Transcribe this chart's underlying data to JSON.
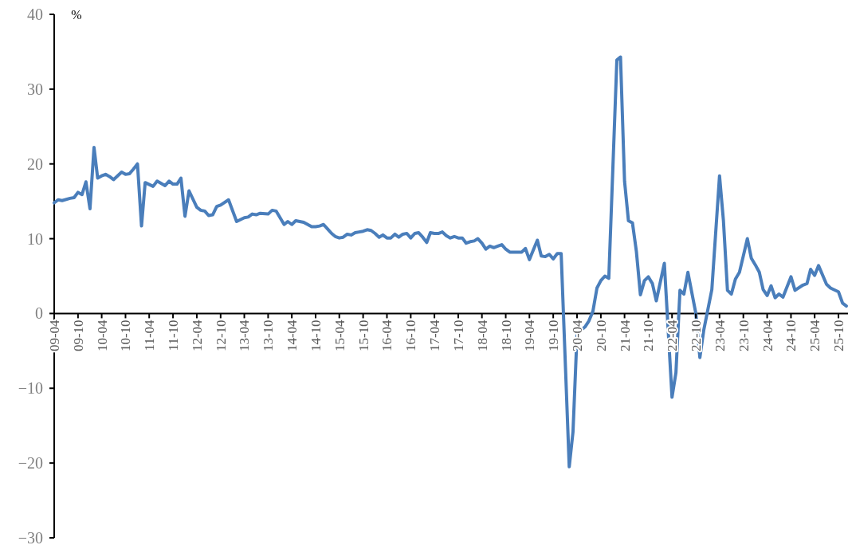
{
  "chart_data": {
    "type": "line",
    "ylabel": "%",
    "xlim": [
      "2009-04",
      "2025-12"
    ],
    "xticks": [
      {
        "value": "2009-04",
        "label": "09-04"
      },
      {
        "value": "2009-10",
        "label": "09-10"
      },
      {
        "value": "2010-04",
        "label": "10-04"
      },
      {
        "value": "2010-10",
        "label": "10-10"
      },
      {
        "value": "2011-04",
        "label": "11-04"
      },
      {
        "value": "2011-10",
        "label": "11-10"
      },
      {
        "value": "2012-04",
        "label": "12-04"
      },
      {
        "value": "2012-10",
        "label": "12-10"
      },
      {
        "value": "2013-04",
        "label": "13-04"
      },
      {
        "value": "2013-10",
        "label": "13-10"
      },
      {
        "value": "2014-04",
        "label": "14-04"
      },
      {
        "value": "2014-10",
        "label": "14-10"
      },
      {
        "value": "2015-04",
        "label": "15-04"
      },
      {
        "value": "2015-10",
        "label": "15-10"
      },
      {
        "value": "2016-04",
        "label": "16-04"
      },
      {
        "value": "2016-10",
        "label": "16-10"
      },
      {
        "value": "2017-04",
        "label": "17-04"
      },
      {
        "value": "2017-10",
        "label": "17-10"
      },
      {
        "value": "2018-04",
        "label": "18-04"
      },
      {
        "value": "2018-10",
        "label": "18-10"
      },
      {
        "value": "2019-04",
        "label": "19-04"
      },
      {
        "value": "2019-10",
        "label": "19-10"
      },
      {
        "value": "2020-04",
        "label": "20-04"
      },
      {
        "value": "2020-10",
        "label": "20-10"
      },
      {
        "value": "2021-04",
        "label": "21-04"
      },
      {
        "value": "2021-10",
        "label": "21-10"
      },
      {
        "value": "2022-04",
        "label": "22-04"
      },
      {
        "value": "2022-10",
        "label": "22-10"
      },
      {
        "value": "2023-04",
        "label": "23-04"
      },
      {
        "value": "2023-10",
        "label": "23-10"
      },
      {
        "value": "2024-04",
        "label": "24-04"
      },
      {
        "value": "2024-10",
        "label": "24-10"
      },
      {
        "value": "2025-04",
        "label": "25-04"
      },
      {
        "value": "2025-10",
        "label": "25-10"
      }
    ],
    "ylim": [
      -30,
      40
    ],
    "yticks": [
      -30,
      -20,
      -10,
      0,
      10,
      20,
      30,
      40
    ],
    "grid": false,
    "marker": "none",
    "series": [
      {
        "color": "#4a7ebb",
        "x": [
          "2009-04",
          "2009-05",
          "2009-06",
          "2009-08",
          "2009-09",
          "2009-10",
          "2009-11",
          "2009-12",
          "2010-01",
          "2010-02",
          "2010-03",
          "2010-04",
          "2010-05",
          "2010-06",
          "2010-07",
          "2010-08",
          "2010-09",
          "2010-10",
          "2010-11",
          "2010-12",
          "2011-01",
          "2011-02",
          "2011-03",
          "2011-05",
          "2011-06",
          "2011-08",
          "2011-09",
          "2011-10",
          "2011-11",
          "2011-12",
          "2012-01",
          "2012-02",
          "2012-04",
          "2012-05",
          "2012-06",
          "2012-07",
          "2012-08",
          "2012-09",
          "2012-10",
          "2012-12",
          "2013-02",
          "2013-04",
          "2013-05",
          "2013-06",
          "2013-07",
          "2013-08",
          "2013-10",
          "2013-11",
          "2013-12",
          "2014-02",
          "2014-03",
          "2014-04",
          "2014-05",
          "2014-06",
          "2014-07",
          "2014-08",
          "2014-09",
          "2014-10",
          "2014-11",
          "2014-12",
          "2015-01",
          "2015-02",
          "2015-03",
          "2015-04",
          "2015-05",
          "2015-06",
          "2015-07",
          "2015-08",
          "2015-09",
          "2015-10",
          "2015-11",
          "2015-12",
          "2016-01",
          "2016-02",
          "2016-03",
          "2016-04",
          "2016-05",
          "2016-06",
          "2016-07",
          "2016-08",
          "2016-09",
          "2016-10",
          "2016-11",
          "2016-12",
          "2017-01",
          "2017-02",
          "2017-03",
          "2017-04",
          "2017-05",
          "2017-06",
          "2017-07",
          "2017-08",
          "2017-09",
          "2017-10",
          "2017-11",
          "2017-12",
          "2018-01",
          "2018-02",
          "2018-03",
          "2018-04",
          "2018-05",
          "2018-06",
          "2018-07",
          "2018-08",
          "2018-09",
          "2018-10",
          "2018-11",
          "2018-12",
          "2019-01",
          "2019-02",
          "2019-03",
          "2019-04",
          "2019-05",
          "2019-06",
          "2019-07",
          "2019-08",
          "2019-09",
          "2019-10",
          "2019-11",
          "2019-12",
          "2020-02",
          "2020-03",
          "2020-04",
          "2020-06",
          "2020-07",
          "2020-08",
          "2020-09",
          "2020-10",
          "2020-11",
          "2020-12",
          "2021-02",
          "2021-03",
          "2021-04",
          "2021-05",
          "2021-06",
          "2021-07",
          "2021-08",
          "2021-09",
          "2021-10",
          "2021-11",
          "2021-12",
          "2022-02",
          "2022-04",
          "2022-05",
          "2022-06",
          "2022-07",
          "2022-08",
          "2022-10",
          "2022-11",
          "2022-12",
          "2023-02",
          "2023-04",
          "2023-05",
          "2023-06",
          "2023-07",
          "2023-08",
          "2023-09",
          "2023-10",
          "2023-11",
          "2023-12",
          "2024-01",
          "2024-02",
          "2024-03",
          "2024-04",
          "2024-05",
          "2024-06",
          "2024-07",
          "2024-08",
          "2024-10",
          "2024-11",
          "2025-01",
          "2025-02",
          "2025-03",
          "2025-04",
          "2025-05",
          "2025-07",
          "2025-08",
          "2025-10",
          "2025-11",
          "2025-12"
        ],
        "values": [
          14.8,
          15.2,
          15.1,
          15.4,
          15.5,
          16.2,
          15.9,
          17.6,
          14.0,
          22.2,
          18.1,
          18.4,
          18.6,
          18.3,
          17.9,
          18.4,
          18.9,
          18.6,
          18.7,
          19.3,
          20.0,
          11.7,
          17.5,
          17.0,
          17.7,
          17.1,
          17.7,
          17.3,
          17.3,
          18.1,
          13.0,
          16.4,
          14.2,
          13.8,
          13.7,
          13.1,
          13.2,
          14.3,
          14.5,
          15.2,
          12.3,
          12.8,
          12.9,
          13.3,
          13.2,
          13.4,
          13.3,
          13.8,
          13.7,
          11.9,
          12.3,
          11.9,
          12.4,
          12.3,
          12.2,
          11.9,
          11.6,
          11.6,
          11.7,
          11.9,
          11.3,
          10.7,
          10.3,
          10.1,
          10.2,
          10.6,
          10.5,
          10.8,
          10.9,
          11.0,
          11.2,
          11.1,
          10.7,
          10.2,
          10.5,
          10.1,
          10.1,
          10.6,
          10.2,
          10.6,
          10.7,
          10.1,
          10.7,
          10.8,
          10.2,
          9.5,
          10.8,
          10.7,
          10.7,
          10.9,
          10.4,
          10.1,
          10.3,
          10.1,
          10.1,
          9.4,
          9.6,
          9.7,
          10.0,
          9.4,
          8.6,
          9.0,
          8.8,
          9.0,
          9.2,
          8.6,
          8.2,
          8.2,
          8.2,
          8.2,
          8.7,
          7.2,
          8.5,
          9.8,
          7.7,
          7.6,
          7.9,
          7.3,
          8.0,
          8.0,
          -20.5,
          -15.8,
          -2.7,
          -1.8,
          -1.0,
          0.3,
          3.4,
          4.4,
          5.0,
          4.7,
          33.9,
          34.3,
          17.7,
          12.4,
          12.1,
          8.3,
          2.5,
          4.4,
          4.9,
          4.0,
          1.7,
          6.7,
          -11.2,
          -7.9,
          3.1,
          2.6,
          5.5,
          0.0,
          -5.9,
          -2.2,
          3.2,
          18.4,
          12.4,
          3.1,
          2.6,
          4.6,
          5.5,
          7.7,
          10.0,
          7.4,
          6.5,
          5.5,
          3.2,
          2.4,
          3.7,
          2.1,
          2.6,
          2.2,
          4.9,
          3.1,
          3.8,
          4.0,
          5.9,
          5.1,
          6.4,
          3.9,
          3.4,
          2.9,
          1.4,
          1.0
        ]
      }
    ]
  }
}
